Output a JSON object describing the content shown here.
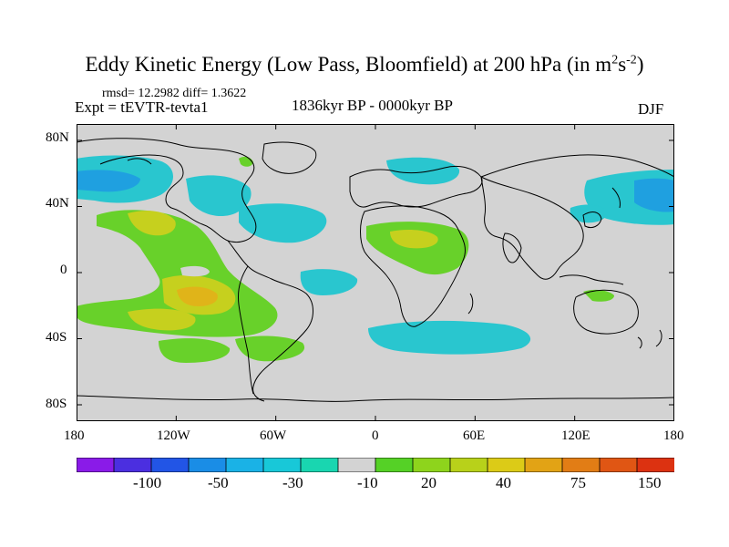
{
  "title": {
    "main": "Eddy Kinetic Energy (Low Pass, Bloomfield) at 200 hPa (in m",
    "sup1": "2",
    "mid": "s",
    "sup2": "-2",
    "end": ")"
  },
  "stats": "rmsd= 12.2982  diff= 1.3622",
  "experiment": "Expt = tEVTR-tevta1",
  "period": "1836kyr BP - 0000kyr BP",
  "season": "DJF",
  "lat_ticks": [
    "80N",
    "40N",
    "0",
    "40S",
    "80S"
  ],
  "lon_ticks": [
    "180",
    "120W",
    "60W",
    "0",
    "60E",
    "120E",
    "180"
  ],
  "colorbar": {
    "labels": [
      "-100",
      "-50",
      "-30",
      "-10",
      "20",
      "40",
      "75",
      "150"
    ],
    "colors": [
      "#8a1be8",
      "#4b2fe0",
      "#2255e6",
      "#1a8de6",
      "#1ab2e6",
      "#18c8d8",
      "#19d6b0",
      "#d3d3d3",
      "#55d126",
      "#8ed41c",
      "#b8d11a",
      "#dccb17",
      "#e2a315",
      "#e27d15",
      "#e05614",
      "#dc3211"
    ]
  },
  "map": {
    "background": "#d3d3d3",
    "regions": [
      {
        "name": "cyan-north-pacific-east",
        "color": "#29c6cf"
      },
      {
        "name": "blue-north-pacific-core",
        "color": "#1fa0e0"
      },
      {
        "name": "green-pacific-plume",
        "color": "#68d12a"
      },
      {
        "name": "yellow-pacific-core",
        "color": "#c6d01e"
      },
      {
        "name": "orange-pacific-core",
        "color": "#e0b419"
      },
      {
        "name": "cyan-south-indian",
        "color": "#29c6cf"
      },
      {
        "name": "green-africa",
        "color": "#68d12a"
      },
      {
        "name": "cyan-west-pacific",
        "color": "#29c6cf"
      }
    ]
  }
}
